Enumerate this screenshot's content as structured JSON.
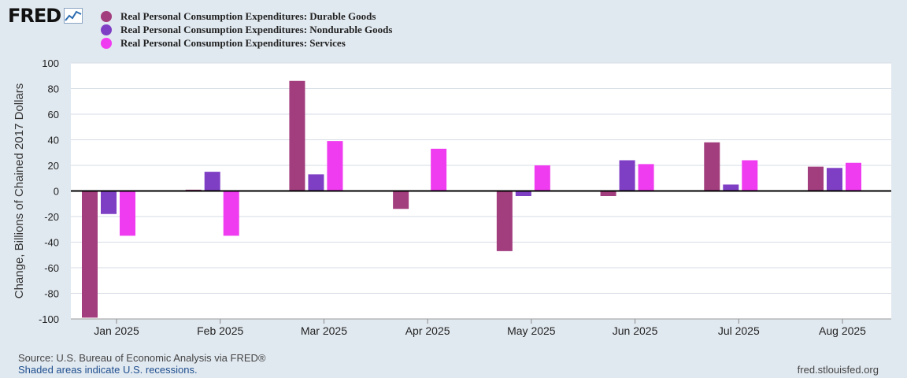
{
  "logo": {
    "text": "FRED",
    "icon": "chart-line-icon"
  },
  "chart_data": {
    "type": "bar",
    "categories": [
      "Jan 2025",
      "Feb 2025",
      "Mar 2025",
      "Apr 2025",
      "May 2025",
      "Jun 2025",
      "Jul 2025",
      "Aug 2025"
    ],
    "series": [
      {
        "name": "Real Personal Consumption Expenditures: Durable Goods",
        "color": "#a23d7e",
        "values": [
          -99,
          1,
          86,
          -14,
          -47,
          -4,
          38,
          19
        ]
      },
      {
        "name": "Real Personal Consumption Expenditures: Nondurable Goods",
        "color": "#7f3fc5",
        "values": [
          -18,
          15,
          13,
          0,
          -4,
          24,
          5,
          18
        ]
      },
      {
        "name": "Real Personal Consumption Expenditures: Services",
        "color": "#f03cf0",
        "values": [
          -35,
          -35,
          39,
          33,
          20,
          21,
          24,
          22
        ]
      }
    ],
    "xlabel": "",
    "ylabel": "Change, Billions of Chained 2017 Dollars",
    "ylim": [
      -100,
      100
    ],
    "yticks": [
      100,
      80,
      60,
      40,
      20,
      0,
      -20,
      -40,
      -60,
      -80,
      -100
    ],
    "yticklabels": [
      "100",
      "80",
      "60",
      "40",
      "20",
      "0",
      "-20",
      "-40",
      "-60",
      "-80",
      "-100"
    ],
    "grid": true,
    "legend": "top-left"
  },
  "footer": {
    "source": "Source: U.S. Bureau of Economic Analysis via FRED®",
    "recession_note": "Shaded areas indicate U.S. recessions.",
    "url": "fred.stlouisfed.org"
  }
}
